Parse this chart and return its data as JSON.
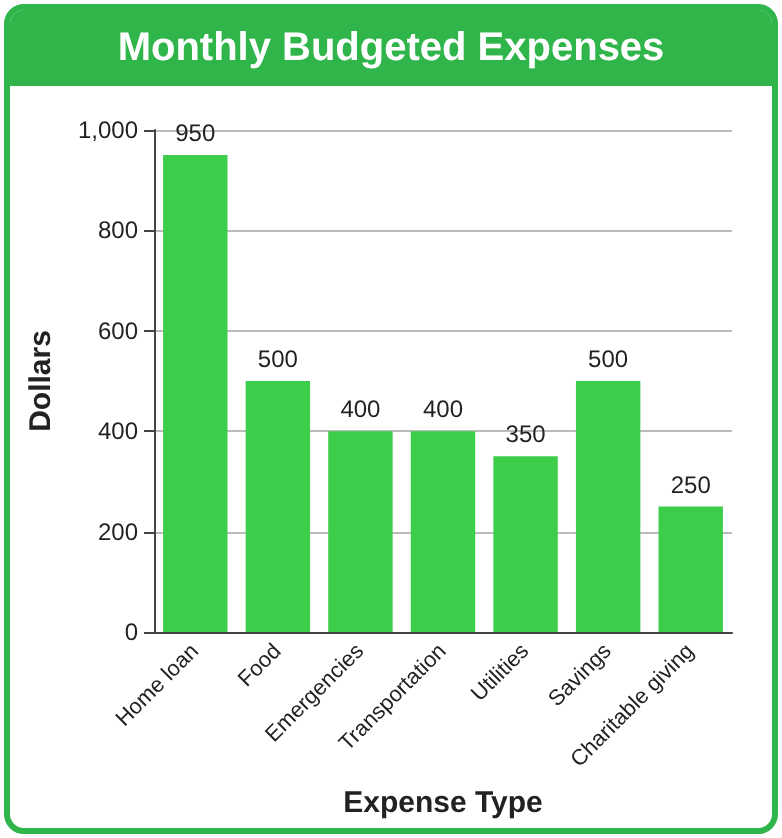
{
  "chart_data": {
    "type": "bar",
    "title": "Monthly Budgeted Expenses",
    "xlabel": "Expense Type",
    "ylabel": "Dollars",
    "categories": [
      "Home loan",
      "Food",
      "Emergencies",
      "Transportation",
      "Utilities",
      "Savings",
      "Charitable giving"
    ],
    "values": [
      950,
      500,
      400,
      400,
      350,
      500,
      250
    ],
    "color": "#3ccd4a",
    "ylim": [
      0,
      1000
    ],
    "yticks": [
      0,
      200,
      400,
      600,
      800,
      {
        "value": 1000,
        "label": "1,000"
      }
    ],
    "grid": "y",
    "data_labels": true
  }
}
